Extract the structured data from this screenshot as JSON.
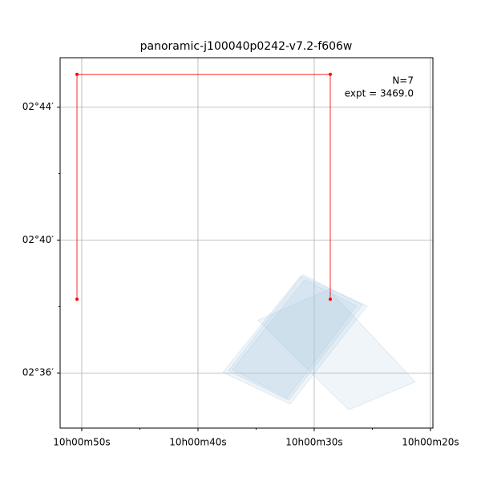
{
  "chart_data": {
    "type": "footprint",
    "title": "panoramic-j100040p0242-v7.2-f606w",
    "annotations": [
      "N=7",
      "expt = 3469.0"
    ],
    "xlim": [
      51.86,
      19.79
    ],
    "ylim": [
      34.34,
      45.49
    ],
    "xticks": [
      {
        "value": 50,
        "label": "10h00m50s"
      },
      {
        "value": 40,
        "label": "10h00m40s"
      },
      {
        "value": 30,
        "label": "10h00m30s"
      },
      {
        "value": 20,
        "label": "10h00m20s"
      }
    ],
    "yticks": [
      {
        "value": 36,
        "label": "02°36′"
      },
      {
        "value": 40,
        "label": "02°40′"
      },
      {
        "value": 44,
        "label": "02°44′"
      }
    ],
    "xminorticks": [
      45,
      35,
      25
    ],
    "yminorticks": [
      38,
      42
    ],
    "grid": true,
    "footprint_color": "#a6c8e0",
    "footprints": [
      {
        "x": [
          37.38,
          30.97,
          25.86,
          32.21
        ],
        "y": [
          36.07,
          38.96,
          38.05,
          35.18
        ]
      },
      {
        "x": [
          37.86,
          31.17,
          25.45,
          32.07
        ],
        "y": [
          36.02,
          38.92,
          38.02,
          35.06
        ]
      },
      {
        "x": [
          37.03,
          30.83,
          26.34,
          32.34
        ],
        "y": [
          36.1,
          38.8,
          38.02,
          35.25
        ]
      },
      {
        "x": [
          34.83,
          28.76,
          21.31,
          27.03
        ],
        "y": [
          37.59,
          38.51,
          35.73,
          34.89
        ]
      }
    ],
    "path": {
      "color": "#ff0000",
      "x": [
        50.41,
        50.41,
        28.62,
        28.62
      ],
      "y": [
        38.22,
        44.99,
        44.99,
        38.22
      ]
    }
  }
}
